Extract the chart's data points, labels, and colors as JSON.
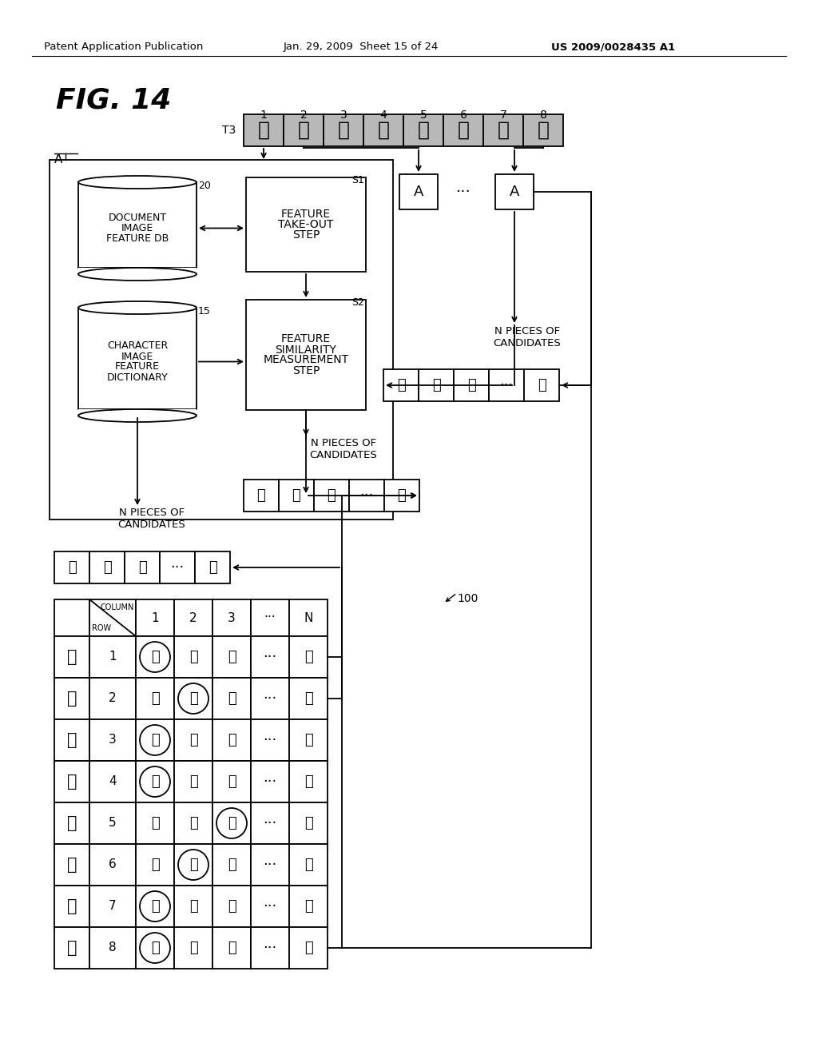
{
  "header_left": "Patent Application Publication",
  "header_mid": "Jan. 29, 2009  Sheet 15 of 24",
  "header_right": "US 2009/0028435 A1",
  "fig_label": "FIG. 14",
  "title_label": "T3",
  "char_sequence": [
    "去",
    "神",
    "仙",
    "居",
    "住",
    "的",
    "地",
    "方"
  ],
  "col_numbers": [
    "1",
    "2",
    "3",
    "4",
    "5",
    "6",
    "7",
    "8"
  ],
  "box1_label": [
    "DOCUMENT",
    "IMAGE",
    "FEATURE DB"
  ],
  "box1_number": "20",
  "box2_label": [
    "CHARACTER",
    "IMAGE",
    "FEATURE",
    "DICTIONARY"
  ],
  "box2_number": "15",
  "box3_label": [
    "FEATURE",
    "TAKE-OUT",
    "STEP"
  ],
  "box3_number": "S1",
  "box4_label": [
    "FEATURE",
    "SIMILARITY",
    "MEASUREMENT",
    "STEP"
  ],
  "box4_number": "S2",
  "a_label": "A",
  "table_label": "100",
  "row_chars": [
    "去",
    "神",
    "仙",
    "居",
    "住",
    "的",
    "地",
    "方"
  ],
  "row_nums": [
    "1",
    "2",
    "3",
    "4",
    "5",
    "6",
    "7",
    "8"
  ],
  "table_col_header": "COLUMN",
  "table_row_header": "ROW",
  "table_cols": [
    "1",
    "2",
    "3",
    "···",
    "N"
  ],
  "table_data": [
    [
      "去",
      "丢",
      "云",
      "···",
      "无"
    ],
    [
      "伸",
      "神",
      "绌",
      "···",
      "砂"
    ],
    [
      "仙",
      "烛",
      "伙",
      "···",
      "伏"
    ],
    [
      "居",
      "層",
      "房",
      "···",
      "历"
    ],
    [
      "任",
      "住",
      "住",
      "···",
      "仁"
    ],
    [
      "酉",
      "的",
      "卤",
      "···",
      "町"
    ],
    [
      "地",
      "沈",
      "泡",
      "···",
      "拖"
    ],
    [
      "方",
      "万",
      "芳",
      "···",
      "仿"
    ]
  ],
  "circled_col": [
    0,
    1,
    0,
    0,
    2,
    1,
    0,
    0
  ],
  "cand_row1": [
    "去",
    "丢",
    "云",
    "···",
    "无"
  ],
  "cand_row2": [
    "伸",
    "神",
    "绌",
    "···",
    "砂"
  ],
  "cand_row3": [
    "方",
    "万",
    "芳",
    "···",
    "仿"
  ],
  "background_color": "#ffffff",
  "dots": "···"
}
